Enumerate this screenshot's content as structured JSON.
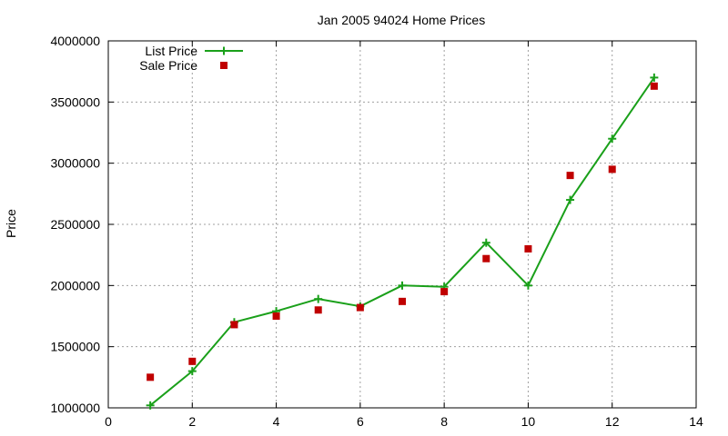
{
  "chart_data": {
    "type": "line",
    "title": "Jan 2005 94024 Home Prices",
    "xlabel": "",
    "ylabel": "Price",
    "xlim": [
      0,
      14
    ],
    "ylim": [
      1000000,
      4000000
    ],
    "xticks": [
      "0",
      "2",
      "4",
      "6",
      "8",
      "10",
      "12",
      "14"
    ],
    "yticks": [
      "1000000",
      "1500000",
      "2000000",
      "2500000",
      "3000000",
      "3500000",
      "4000000"
    ],
    "grid": true,
    "legend_position": "top-left",
    "series": [
      {
        "name": "List Price",
        "style": "line-with-plus-markers",
        "color": "#1aa01a",
        "x": [
          1,
          2,
          3,
          4,
          5,
          6,
          7,
          8,
          9,
          10,
          11,
          12,
          13
        ],
        "y": [
          1020000,
          1300000,
          1700000,
          1790000,
          1890000,
          1830000,
          2000000,
          1990000,
          2350000,
          2000000,
          2700000,
          3200000,
          3700000
        ]
      },
      {
        "name": "Sale Price",
        "style": "square-markers",
        "color": "#c00000",
        "x": [
          1,
          2,
          3,
          4,
          5,
          6,
          7,
          8,
          9,
          10,
          11,
          12,
          13
        ],
        "y": [
          1250000,
          1380000,
          1680000,
          1750000,
          1800000,
          1820000,
          1870000,
          1950000,
          2220000,
          2300000,
          2900000,
          2950000,
          3630000
        ]
      }
    ]
  }
}
